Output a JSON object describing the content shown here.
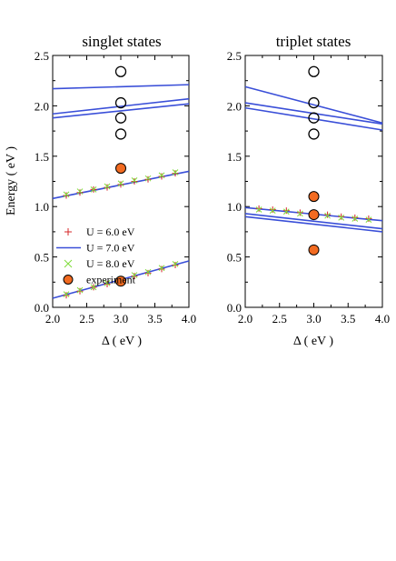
{
  "chart_data": [
    {
      "type": "line",
      "title": "singlet states",
      "xlabel": "Δ ( eV )",
      "ylabel": "Energy ( eV )",
      "xlim": [
        2.0,
        4.0
      ],
      "ylim": [
        0.0,
        2.5
      ],
      "xticks": [
        "2.0",
        "2.5",
        "3.0",
        "3.5",
        "4.0"
      ],
      "yticks": [
        "0.0",
        "0.5",
        "1.0",
        "1.5",
        "2.0",
        "2.5"
      ],
      "legend": {
        "placement": "lower-left",
        "entries": [
          {
            "label": "U = 6.0 eV",
            "marker": "plus",
            "color": "#d62728"
          },
          {
            "label": "U = 7.0 eV",
            "marker": "line",
            "color": "#3a4fd8"
          },
          {
            "label": "U = 8.0 eV",
            "marker": "x",
            "color": "#7fdd3a"
          },
          {
            "label": "experiment",
            "marker": "filled-circle",
            "color": "#f26b21"
          }
        ]
      },
      "lines_u7": [
        {
          "x": [
            2.0,
            4.0
          ],
          "y": [
            2.17,
            2.21
          ]
        },
        {
          "x": [
            2.0,
            4.0
          ],
          "y": [
            1.92,
            2.07
          ]
        },
        {
          "x": [
            2.0,
            4.0
          ],
          "y": [
            1.88,
            2.02
          ]
        },
        {
          "x": [
            2.0,
            4.0
          ],
          "y": [
            1.08,
            1.35
          ]
        },
        {
          "x": [
            2.0,
            4.0
          ],
          "y": [
            0.09,
            0.46
          ]
        }
      ],
      "markers_u6": [
        {
          "x": [
            2.2,
            2.4,
            2.6,
            2.8,
            3.0,
            3.2,
            3.4,
            3.6,
            3.8
          ],
          "y": [
            1.11,
            1.14,
            1.17,
            1.19,
            1.22,
            1.25,
            1.27,
            1.3,
            1.33
          ]
        },
        {
          "x": [
            2.2,
            2.4,
            2.6,
            2.8,
            3.0,
            3.2,
            3.4,
            3.6,
            3.8
          ],
          "y": [
            0.12,
            0.16,
            0.2,
            0.23,
            0.27,
            0.31,
            0.34,
            0.38,
            0.42
          ]
        }
      ],
      "markers_u8": [
        {
          "x": [
            2.2,
            2.4,
            2.6,
            2.8,
            3.0,
            3.2,
            3.4,
            3.6,
            3.8
          ],
          "y": [
            1.12,
            1.15,
            1.17,
            1.2,
            1.23,
            1.26,
            1.28,
            1.31,
            1.34
          ]
        },
        {
          "x": [
            2.2,
            2.4,
            2.6,
            2.8,
            3.0,
            3.2,
            3.4,
            3.6,
            3.8
          ],
          "y": [
            0.13,
            0.17,
            0.2,
            0.24,
            0.28,
            0.32,
            0.35,
            0.39,
            0.43
          ]
        }
      ],
      "experiment_filled": {
        "x": [
          3.0,
          3.0
        ],
        "y": [
          1.38,
          0.26
        ]
      },
      "experiment_open": {
        "x": [
          3.0,
          3.0,
          3.0,
          3.0
        ],
        "y": [
          2.34,
          2.03,
          1.88,
          1.72
        ]
      }
    },
    {
      "type": "line",
      "title": "triplet states",
      "xlabel": "Δ ( eV )",
      "ylabel": "",
      "xlim": [
        2.0,
        4.0
      ],
      "ylim": [
        0.0,
        2.5
      ],
      "xticks": [
        "2.0",
        "2.5",
        "3.0",
        "3.5",
        "4.0"
      ],
      "yticks": [
        "0.0",
        "0.5",
        "1.0",
        "1.5",
        "2.0",
        "2.5"
      ],
      "lines_u7": [
        {
          "x": [
            2.0,
            4.0
          ],
          "y": [
            2.19,
            1.83
          ]
        },
        {
          "x": [
            2.0,
            4.0
          ],
          "y": [
            2.03,
            1.82
          ]
        },
        {
          "x": [
            2.0,
            4.0
          ],
          "y": [
            1.98,
            1.76
          ]
        },
        {
          "x": [
            2.0,
            4.0
          ],
          "y": [
            0.99,
            0.86
          ]
        },
        {
          "x": [
            2.0,
            4.0
          ],
          "y": [
            0.93,
            0.78
          ]
        },
        {
          "x": [
            2.0,
            4.0
          ],
          "y": [
            0.9,
            0.75
          ]
        }
      ],
      "markers_u6": [
        {
          "x": [
            2.2,
            2.4,
            2.6,
            2.8,
            3.0,
            3.2,
            3.4,
            3.6,
            3.8
          ],
          "y": [
            0.98,
            0.97,
            0.96,
            0.94,
            0.93,
            0.92,
            0.9,
            0.89,
            0.88
          ]
        }
      ],
      "markers_u8": [
        {
          "x": [
            2.2,
            2.4,
            2.6,
            2.8,
            3.0,
            3.2,
            3.4,
            3.6,
            3.8
          ],
          "y": [
            0.97,
            0.96,
            0.95,
            0.93,
            0.92,
            0.91,
            0.89,
            0.88,
            0.87
          ]
        }
      ],
      "experiment_filled": {
        "x": [
          3.0,
          3.0,
          3.0
        ],
        "y": [
          1.1,
          0.92,
          0.57
        ]
      },
      "experiment_open": {
        "x": [
          3.0,
          3.0,
          3.0,
          3.0
        ],
        "y": [
          2.34,
          2.03,
          1.88,
          1.72
        ]
      }
    }
  ]
}
